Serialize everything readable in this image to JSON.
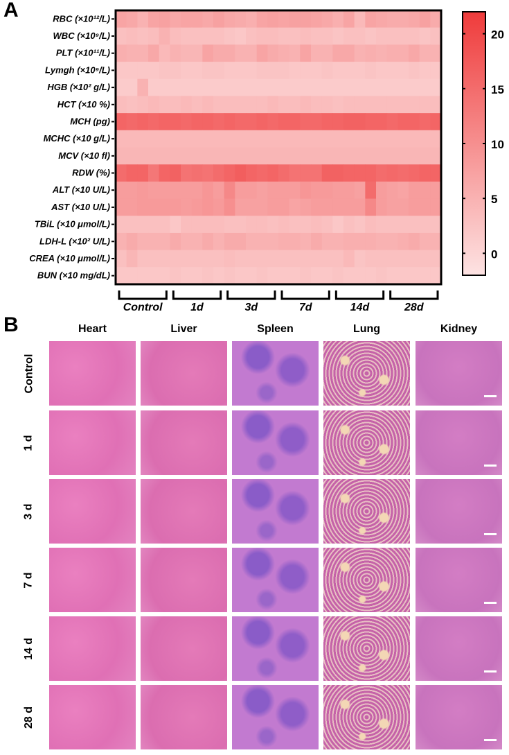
{
  "panel_a": {
    "letter": "A"
  },
  "panel_b": {
    "letter": "B",
    "columns": [
      "Heart",
      "Liver",
      "Spleen",
      "Lung",
      "Kidney"
    ],
    "rows": [
      "Control",
      "1 d",
      "3 d",
      "7 d",
      "14 d",
      "28 d"
    ]
  },
  "chart_data": {
    "type": "heatmap",
    "rows": [
      "RBC (×10¹²/L)",
      "WBC (×10⁹/L)",
      "PLT (×10¹¹/L)",
      "Lymgh (×10⁹/L)",
      "HGB (×10² g/L)",
      "HCT (×10 %)",
      "MCH (pg)",
      "MCHC (×10 g/L)",
      "MCV (×10 fl)",
      "RDW (%)",
      "ALT (×10 U/L)",
      "AST (×10 U/L)",
      "TBiL (×10 μmol/L)",
      "LDH-L (×10² U/L)",
      "CREA (×10 μmol/L)",
      "BUN (×10 mg/dL)"
    ],
    "groups": [
      "Control",
      "1d",
      "3d",
      "7d",
      "14d",
      "28d"
    ],
    "replicates_per_group": 5,
    "colorbar": {
      "min": -2,
      "max": 22,
      "ticks": [
        0,
        5,
        10,
        15,
        20
      ],
      "low_color": "#fde3e3",
      "high_color": "#ef3b3b"
    },
    "values": [
      [
        7,
        6.5,
        5,
        7,
        7.5,
        6.5,
        7,
        7,
        6.5,
        7.5,
        6.5,
        6,
        5.5,
        7,
        7.5,
        7,
        7.5,
        7.5,
        7,
        6.5,
        5.5,
        7,
        4,
        7,
        6.5,
        6,
        6,
        6.5,
        7.5,
        6
      ],
      [
        3,
        3.5,
        3,
        3.5,
        5,
        3.5,
        3,
        3,
        3,
        3,
        2.5,
        2,
        3,
        3.5,
        3.5,
        3,
        3,
        3.5,
        3,
        3,
        2.5,
        3,
        3,
        2.5,
        3,
        3,
        3,
        3,
        2.5,
        3
      ],
      [
        5.5,
        5,
        5,
        6.5,
        4,
        5,
        4.5,
        4.5,
        7,
        6,
        6,
        5,
        5,
        7,
        6,
        5.5,
        5,
        7,
        5,
        5,
        6.5,
        6.5,
        5,
        5.5,
        5,
        5.5,
        5.5,
        6.5,
        5,
        5
      ],
      [
        2,
        2,
        2,
        2,
        2.5,
        2.5,
        2,
        2,
        2.5,
        2.5,
        2,
        2,
        2,
        2.5,
        2.5,
        2.5,
        2,
        2,
        2,
        2.5,
        2,
        2,
        2,
        2.5,
        2,
        2,
        2,
        2.5,
        2,
        2
      ],
      [
        1.5,
        1.5,
        5,
        1.5,
        1.5,
        1.5,
        1.5,
        1.5,
        1.5,
        1.5,
        1.5,
        1.5,
        1.5,
        1.5,
        1.5,
        1.5,
        1.5,
        1.5,
        1.5,
        1.5,
        1.5,
        1.5,
        1.5,
        1.5,
        1.5,
        1.5,
        1.5,
        1.5,
        1.5,
        1.5
      ],
      [
        3.5,
        3,
        3.5,
        4,
        3.5,
        3.5,
        4,
        3.5,
        4,
        3.5,
        3.5,
        3.5,
        3.5,
        3.5,
        4,
        3.5,
        3.5,
        4,
        3.5,
        3.5,
        3,
        3.5,
        3.5,
        3.5,
        3.5,
        3.5,
        3.5,
        3.5,
        3.5,
        3.5
      ],
      [
        16,
        15.5,
        16,
        15.5,
        16,
        16,
        15.5,
        16,
        16,
        15.5,
        16,
        15.5,
        15.5,
        16,
        15.5,
        16,
        16,
        15.5,
        15.5,
        16,
        16,
        16.5,
        16.5,
        16,
        16,
        15.5,
        16,
        16,
        15.5,
        16
      ],
      [
        4,
        4,
        4,
        4,
        4,
        4,
        4,
        4,
        4,
        4,
        4,
        4,
        4,
        4,
        4,
        4,
        4,
        4,
        4,
        4,
        4,
        4,
        4,
        4,
        4,
        4,
        4,
        4,
        4,
        4
      ],
      [
        4.5,
        4.5,
        4.5,
        4.5,
        4.5,
        4.5,
        4.5,
        4.5,
        4.5,
        4.5,
        4.5,
        4.5,
        4.5,
        4.5,
        4.5,
        4.5,
        4.5,
        4.5,
        4.5,
        4.5,
        4.5,
        4.5,
        4.5,
        4.5,
        4.5,
        4.5,
        4.5,
        4.5,
        4.5,
        4.5
      ],
      [
        15,
        16,
        16,
        13.5,
        16,
        16.5,
        14,
        14.5,
        14,
        15,
        16,
        17,
        16,
        15.5,
        16,
        15,
        14,
        14,
        14,
        16.5,
        16.5,
        16,
        16,
        16,
        15,
        15.5,
        15,
        15.5,
        16,
        16
      ],
      [
        8,
        8,
        8.5,
        8,
        8,
        8,
        8,
        8,
        9,
        8,
        11,
        8,
        8,
        7.5,
        8,
        8,
        8,
        9,
        8.5,
        8.5,
        8,
        8,
        7.5,
        15,
        8,
        7.5,
        7,
        8,
        8,
        8
      ],
      [
        8,
        8,
        8.5,
        8.5,
        8.5,
        8.5,
        8,
        8.5,
        9,
        8.5,
        10,
        7.5,
        7.5,
        7.5,
        8,
        8,
        7,
        7.5,
        8,
        8,
        8,
        8,
        8,
        11,
        8,
        7.5,
        7.5,
        8,
        8,
        8
      ],
      [
        3,
        3,
        3,
        3,
        3,
        2,
        3.5,
        3.5,
        3.5,
        3.5,
        3,
        3,
        3.5,
        3.5,
        3,
        3.5,
        3,
        3,
        3.5,
        3,
        2,
        3,
        2.5,
        3.5,
        3,
        3,
        3,
        3,
        3,
        3
      ],
      [
        5,
        6,
        5,
        5,
        5,
        6,
        5,
        5,
        6,
        5,
        6,
        6,
        5,
        5,
        5,
        5.5,
        5.5,
        5,
        6,
        5,
        5,
        5.5,
        5.5,
        5.5,
        5,
        5,
        5.5,
        6,
        5,
        5
      ],
      [
        3,
        4.5,
        3,
        3,
        3,
        3,
        3,
        3,
        3,
        3,
        3.5,
        3,
        3,
        3,
        3,
        3,
        3,
        3,
        3,
        3,
        3,
        4,
        2.5,
        3,
        3,
        3,
        3,
        3,
        3,
        3
      ],
      [
        2,
        2,
        2,
        2,
        2,
        2.5,
        2,
        2,
        2.5,
        2,
        2.5,
        2,
        2,
        2.5,
        2,
        2,
        2,
        2.5,
        2,
        2,
        2.5,
        2,
        2,
        2,
        2.5,
        2,
        2,
        2,
        2,
        2
      ]
    ]
  }
}
